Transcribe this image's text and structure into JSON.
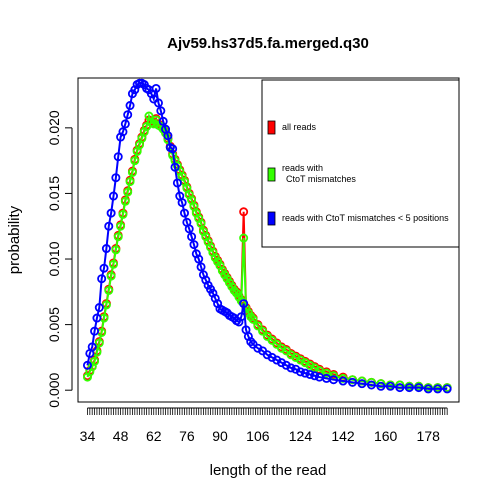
{
  "chart_data": {
    "type": "line",
    "title": "Ajv59.hs37d5.fa.merged.q30",
    "xlabel": "length of the read",
    "ylabel": "probability",
    "xlim": [
      30,
      191
    ],
    "ylim": [
      -0.0009,
      0.0238
    ],
    "x_tick_labels": [
      34,
      48,
      62,
      76,
      90,
      106,
      124,
      142,
      160,
      178
    ],
    "y_ticks": [
      0.0,
      0.005,
      0.01,
      0.015,
      0.02
    ],
    "y_tick_labels": [
      "0.000",
      "0.005",
      "0.010",
      "0.015",
      "0.020"
    ],
    "legend": {
      "position": "top-right",
      "entries": [
        {
          "label": "all reads",
          "color": "#ff0000"
        },
        {
          "label_lines": [
            "reads with",
            "CtoT mismatches"
          ],
          "color": "#33ff00"
        },
        {
          "label": "reads with CtoT mismatches < 5 positions",
          "color": "#0000ff"
        }
      ]
    },
    "series": [
      {
        "color": "#ff0000",
        "x": [
          34,
          35,
          36,
          37,
          38,
          39,
          40,
          41,
          42,
          43,
          44,
          45,
          46,
          47,
          48,
          49,
          50,
          51,
          52,
          53,
          54,
          55,
          56,
          57,
          58,
          59,
          60,
          61,
          62,
          63,
          64,
          65,
          66,
          67,
          68,
          69,
          70,
          71,
          72,
          73,
          74,
          75,
          76,
          77,
          78,
          79,
          80,
          81,
          82,
          83,
          84,
          85,
          86,
          87,
          88,
          89,
          90,
          91,
          92,
          93,
          94,
          95,
          96,
          97,
          98,
          99,
          100,
          101,
          102,
          103,
          104,
          106,
          108,
          110,
          112,
          114,
          116,
          118,
          120,
          122,
          124,
          126,
          128,
          130,
          132,
          135,
          138,
          142,
          146,
          150,
          154,
          158,
          162,
          166,
          170,
          174,
          178,
          182,
          186
        ],
        "y": [
          0.0011,
          0.0015,
          0.0018,
          0.0023,
          0.003,
          0.0037,
          0.0045,
          0.0056,
          0.0066,
          0.0077,
          0.0088,
          0.0097,
          0.0108,
          0.0118,
          0.0126,
          0.0135,
          0.0145,
          0.0152,
          0.016,
          0.0167,
          0.0176,
          0.0183,
          0.0188,
          0.0193,
          0.0198,
          0.0202,
          0.0206,
          0.0205,
          0.0204,
          0.0207,
          0.0203,
          0.0202,
          0.02,
          0.0197,
          0.0192,
          0.0186,
          0.018,
          0.0176,
          0.0172,
          0.0168,
          0.0164,
          0.016,
          0.0155,
          0.015,
          0.0146,
          0.0141,
          0.0136,
          0.0132,
          0.0128,
          0.0122,
          0.0118,
          0.0114,
          0.011,
          0.0106,
          0.0102,
          0.0099,
          0.0096,
          0.0092,
          0.0089,
          0.0086,
          0.0083,
          0.008,
          0.0077,
          0.0075,
          0.0072,
          0.0069,
          0.0136,
          0.0063,
          0.006,
          0.0057,
          0.0055,
          0.005,
          0.0046,
          0.0042,
          0.0039,
          0.0036,
          0.0033,
          0.0031,
          0.0028,
          0.0026,
          0.0024,
          0.0022,
          0.002,
          0.0018,
          0.0016,
          0.0014,
          0.0012,
          0.001,
          0.0008,
          0.0007,
          0.0006,
          0.0005,
          0.0004,
          0.0004,
          0.0003,
          0.0003,
          0.0002,
          0.0002,
          0.0002
        ]
      },
      {
        "color": "#33ff00",
        "x": [
          34,
          35,
          36,
          37,
          38,
          39,
          40,
          41,
          42,
          43,
          44,
          45,
          46,
          47,
          48,
          49,
          50,
          51,
          52,
          53,
          54,
          55,
          56,
          57,
          58,
          59,
          60,
          61,
          62,
          63,
          64,
          65,
          66,
          67,
          68,
          69,
          70,
          71,
          72,
          73,
          74,
          75,
          76,
          77,
          78,
          79,
          80,
          81,
          82,
          83,
          84,
          85,
          86,
          87,
          88,
          89,
          90,
          91,
          92,
          93,
          94,
          95,
          96,
          97,
          98,
          99,
          100,
          101,
          102,
          103,
          104,
          106,
          108,
          110,
          112,
          114,
          116,
          118,
          120,
          122,
          124,
          126,
          128,
          130,
          132,
          135,
          138,
          142,
          146,
          150,
          154,
          158,
          162,
          166,
          170,
          174,
          178,
          182,
          186
        ],
        "y": [
          0.001,
          0.0014,
          0.0018,
          0.0022,
          0.0029,
          0.0036,
          0.0044,
          0.0055,
          0.0065,
          0.0076,
          0.0087,
          0.0096,
          0.0107,
          0.0117,
          0.0125,
          0.0134,
          0.0144,
          0.0151,
          0.0159,
          0.0166,
          0.0175,
          0.0182,
          0.0187,
          0.0192,
          0.0197,
          0.0201,
          0.0209,
          0.0204,
          0.0203,
          0.0206,
          0.0202,
          0.0201,
          0.0199,
          0.0196,
          0.0191,
          0.0185,
          0.0179,
          0.0175,
          0.0171,
          0.0167,
          0.0163,
          0.0159,
          0.0154,
          0.0149,
          0.0145,
          0.014,
          0.0135,
          0.0131,
          0.0127,
          0.0121,
          0.0117,
          0.0113,
          0.0109,
          0.0105,
          0.0101,
          0.0098,
          0.0095,
          0.0091,
          0.0088,
          0.0085,
          0.0082,
          0.0079,
          0.0076,
          0.0074,
          0.0071,
          0.0068,
          0.0116,
          0.0062,
          0.0059,
          0.0056,
          0.0054,
          0.0049,
          0.0045,
          0.0041,
          0.0038,
          0.0035,
          0.0032,
          0.003,
          0.0027,
          0.0025,
          0.0023,
          0.0021,
          0.0019,
          0.0017,
          0.0015,
          0.0013,
          0.0011,
          0.0009,
          0.0008,
          0.0007,
          0.0006,
          0.0005,
          0.0004,
          0.0004,
          0.0003,
          0.0003,
          0.0002,
          0.0002,
          0.0002
        ]
      },
      {
        "color": "#0000ff",
        "x": [
          34,
          35,
          36,
          37,
          38,
          39,
          40,
          41,
          42,
          43,
          44,
          45,
          46,
          47,
          48,
          49,
          50,
          51,
          52,
          53,
          54,
          55,
          56,
          57,
          58,
          59,
          60,
          61,
          62,
          63,
          64,
          65,
          66,
          67,
          68,
          69,
          70,
          71,
          72,
          73,
          74,
          75,
          76,
          77,
          78,
          79,
          80,
          81,
          82,
          83,
          84,
          85,
          86,
          87,
          88,
          89,
          90,
          91,
          92,
          93,
          94,
          95,
          96,
          97,
          98,
          99,
          100,
          101,
          102,
          103,
          104,
          106,
          108,
          110,
          112,
          114,
          116,
          118,
          120,
          122,
          124,
          126,
          128,
          130,
          132,
          135,
          138,
          142,
          146,
          150,
          154,
          158,
          162,
          166,
          170,
          174,
          178,
          182,
          186
        ],
        "y": [
          0.0019,
          0.0028,
          0.0033,
          0.0045,
          0.0055,
          0.0063,
          0.0085,
          0.0093,
          0.0108,
          0.0125,
          0.0135,
          0.0148,
          0.0162,
          0.0178,
          0.0193,
          0.0197,
          0.0203,
          0.021,
          0.0217,
          0.0226,
          0.0229,
          0.0233,
          0.0234,
          0.0234,
          0.0233,
          0.023,
          0.0229,
          0.0226,
          0.0222,
          0.023,
          0.0219,
          0.0213,
          0.0205,
          0.0199,
          0.0194,
          0.0185,
          0.0184,
          0.017,
          0.0158,
          0.0148,
          0.0143,
          0.0135,
          0.0128,
          0.0123,
          0.0117,
          0.0111,
          0.0104,
          0.01,
          0.0094,
          0.0088,
          0.0084,
          0.008,
          0.0077,
          0.0074,
          0.007,
          0.0066,
          0.0062,
          0.0061,
          0.006,
          0.0059,
          0.0057,
          0.0056,
          0.0055,
          0.0053,
          0.0052,
          0.0056,
          0.0066,
          0.0046,
          0.0041,
          0.0037,
          0.0035,
          0.0032,
          0.003,
          0.0027,
          0.0025,
          0.0023,
          0.0021,
          0.0019,
          0.0017,
          0.0016,
          0.0014,
          0.0013,
          0.0012,
          0.0011,
          0.001,
          0.0009,
          0.0008,
          0.0007,
          0.0006,
          0.0005,
          0.0004,
          0.0003,
          0.0003,
          0.0002,
          0.0002,
          0.0002,
          0.0001,
          0.0001,
          0.0001
        ]
      }
    ]
  }
}
